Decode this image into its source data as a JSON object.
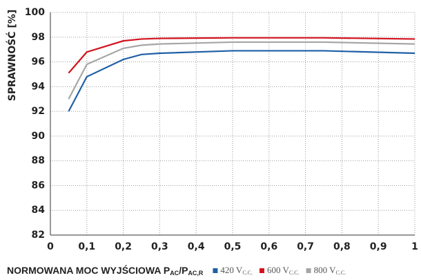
{
  "chart_data": {
    "type": "line",
    "ylabel": "SPRAWNOŚĆ [%]",
    "xlabel": [
      "NORMOWANA MOC WYJŚCIOWA P",
      "AC",
      "/P",
      "AC,R"
    ],
    "x": [
      0.05,
      0.1,
      0.2,
      0.25,
      0.3,
      0.5,
      0.75,
      1.0
    ],
    "series": [
      {
        "name": "420 V",
        "name_sub": "C.C.",
        "color": "#1f5fa6",
        "values": [
          92.0,
          94.8,
          96.2,
          96.6,
          96.7,
          96.9,
          96.9,
          96.7
        ]
      },
      {
        "name": "600 V",
        "name_sub": "C.C.",
        "color": "#d3121d",
        "values": [
          95.1,
          96.8,
          97.7,
          97.85,
          97.9,
          97.95,
          97.95,
          97.85
        ]
      },
      {
        "name": "800 V",
        "name_sub": "C.C.",
        "color": "#a6a6a6",
        "values": [
          93.0,
          95.8,
          97.1,
          97.35,
          97.45,
          97.6,
          97.6,
          97.45
        ]
      }
    ],
    "xlim": [
      0,
      1
    ],
    "xticks": [
      0,
      {
        "value": 0.1,
        "label": "0,1"
      },
      {
        "value": 0.2,
        "label": "0,2"
      },
      {
        "value": 0.3,
        "label": "0,3"
      },
      {
        "value": 0.4,
        "label": "0,4"
      },
      {
        "value": 0.5,
        "label": "0,5"
      },
      {
        "value": 0.6,
        "label": "0,6"
      },
      {
        "value": 0.7,
        "label": "0,7"
      },
      {
        "value": 0.8,
        "label": "0,8"
      },
      {
        "value": 0.9,
        "label": "0,9"
      },
      1
    ],
    "ylim": [
      82,
      100
    ],
    "yticks": [
      82,
      84,
      86,
      88,
      90,
      92,
      94,
      96,
      98,
      100
    ],
    "grid": true
  }
}
